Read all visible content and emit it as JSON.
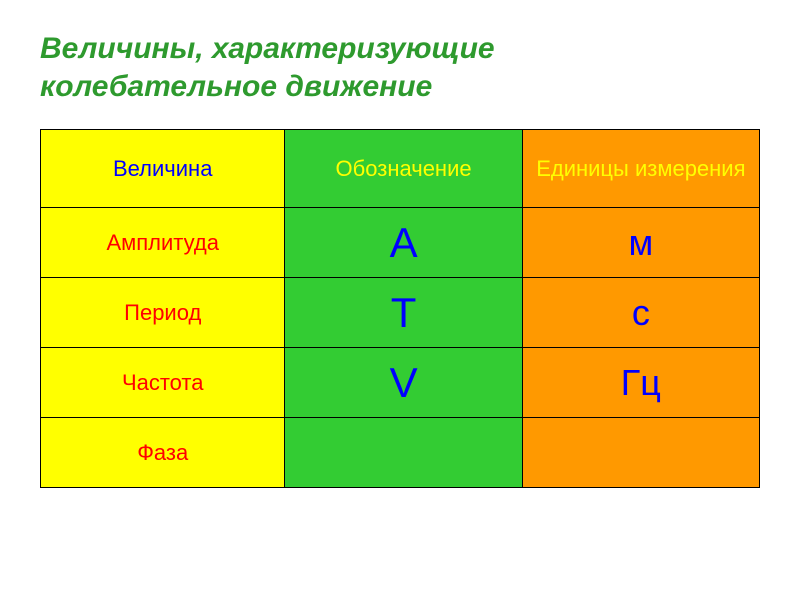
{
  "title_line1": "Величины, характеризующие",
  "title_line2": "колебательное движение",
  "title_color": "#2e9a2e",
  "title_fontsize": 30,
  "table": {
    "columns": {
      "c1": {
        "bg": "#ffff00"
      },
      "c2": {
        "bg": "#33cc33"
      },
      "c3": {
        "bg": "#ff9900"
      }
    },
    "header": {
      "fontsize": 22,
      "color_c1": "#0000ff",
      "color_c2": "#ffff00",
      "color_c3": "#ffff00",
      "labels": {
        "c1": "Величина",
        "c2": "Обозначение",
        "c3": "Единицы измерения"
      }
    },
    "rows": [
      {
        "name": "Амплитуда",
        "symbol": "А",
        "unit": "м"
      },
      {
        "name": "Период",
        "symbol": "Т",
        "unit": "с"
      },
      {
        "name": "Частота",
        "symbol": "V",
        "unit": "Гц"
      },
      {
        "name": "Фаза",
        "symbol": "",
        "unit": ""
      }
    ],
    "cell_text_color": "#ff0000",
    "symbol_unit_color": "#0000ff",
    "name_fontsize": 22,
    "symbol_fontsize": 42,
    "unit_fontsize": 36
  }
}
